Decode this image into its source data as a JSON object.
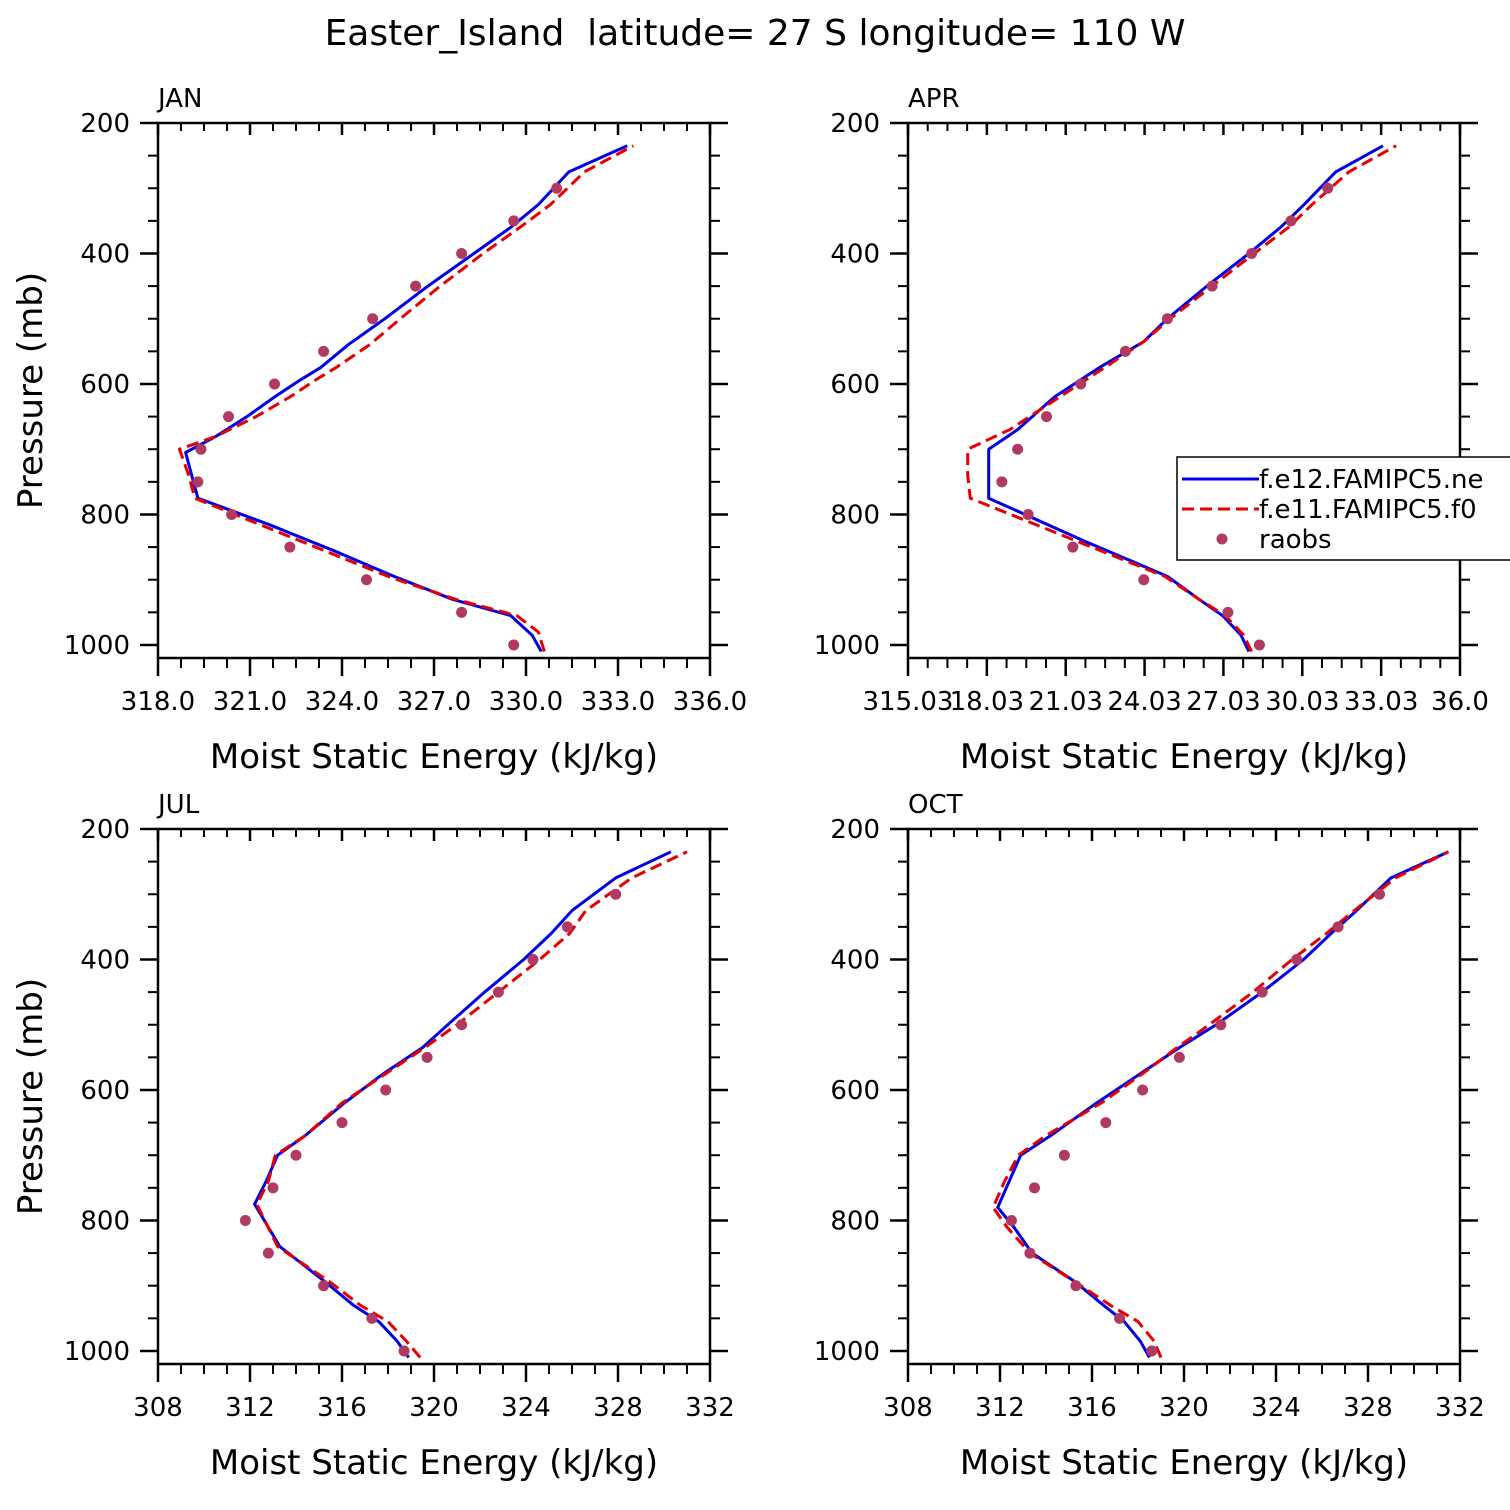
{
  "figure_title": "Easter_Island  latitude= 27 S longitude= 110 W",
  "legend": {
    "entries": [
      {
        "label": "f.e12.FAMIPC5.ne",
        "style": "solid",
        "color": "#0000e6"
      },
      {
        "label": "f.e11.FAMIPC5.f0",
        "style": "dashed",
        "color": "#e60000"
      },
      {
        "label": "raobs",
        "style": "marker",
        "color": "#b03a62"
      }
    ]
  },
  "colors": {
    "model_new": "#0000e6",
    "model_old": "#e60000",
    "raobs": "#b03a62"
  },
  "chart_data": [
    {
      "type": "line",
      "panel": "JAN",
      "title": "JAN",
      "xlabel": "Moist Static Energy (kJ/kg)",
      "ylabel": "Pressure (mb)",
      "xlim": [
        318,
        336
      ],
      "ylim": [
        200,
        1000
      ],
      "xticks": [
        318,
        321,
        324,
        327,
        330,
        333,
        336
      ],
      "xtick_labels": [
        "318.0",
        "321.0",
        "324.0",
        "327.0",
        "330.0",
        "333.0",
        "336.0"
      ],
      "yticks": [
        200,
        400,
        600,
        800,
        1000
      ],
      "ytick_labels": [
        "200",
        "400",
        "600",
        "800",
        "1000"
      ],
      "series": [
        {
          "name": "f.e12.FAMIPC5.ne",
          "pressure": [
            1010,
            985,
            955,
            930,
            895,
            855,
            815,
            775,
            740,
            705,
            680,
            650,
            620,
            595,
            575,
            540,
            500,
            450,
            400,
            360,
            325,
            275,
            235
          ],
          "values": [
            330.5,
            330.2,
            329.5,
            327.6,
            325.7,
            323.7,
            321.6,
            319.3,
            319.1,
            318.9,
            319.9,
            320.9,
            321.8,
            322.6,
            323.3,
            324.2,
            325.4,
            326.8,
            328.3,
            329.5,
            330.4,
            331.4,
            333.3
          ]
        },
        {
          "name": "f.e11.FAMIPC5.f0",
          "pressure": [
            1010,
            980,
            955,
            930,
            895,
            855,
            815,
            775,
            740,
            700,
            680,
            650,
            620,
            595,
            575,
            540,
            500,
            450,
            400,
            360,
            325,
            275,
            235
          ],
          "values": [
            330.6,
            330.4,
            329.7,
            327.7,
            325.5,
            323.4,
            321.3,
            319.2,
            319.0,
            318.7,
            319.9,
            321.2,
            322.3,
            323.1,
            323.8,
            324.9,
            325.9,
            327.2,
            328.6,
            329.8,
            330.8,
            331.9,
            333.5
          ]
        },
        {
          "name": "raobs",
          "pressure": [
            300,
            350,
            400,
            450,
            500,
            550,
            600,
            650,
            700,
            750,
            800,
            850,
            900,
            950,
            1000
          ],
          "values": [
            331.0,
            329.6,
            327.9,
            326.4,
            325.0,
            323.4,
            321.8,
            320.3,
            319.4,
            319.3,
            320.4,
            322.3,
            324.8,
            327.9,
            329.6
          ]
        }
      ]
    },
    {
      "type": "line",
      "panel": "APR",
      "title": "APR",
      "xlabel": "Moist Static Energy (kJ/kg)",
      "ylabel": "",
      "xlim": [
        315.03,
        336.03
      ],
      "ylim": [
        200,
        1000
      ],
      "xticks": [
        315.03,
        318.03,
        321.03,
        324.03,
        327.03,
        330.03,
        333.03,
        336.03
      ],
      "xtick_labels": [
        "315.03",
        "18.03",
        "21.03",
        "24.03",
        "27.03",
        "30.03",
        "33.03",
        "36.0"
      ],
      "yticks": [
        200,
        400,
        600,
        800,
        1000
      ],
      "ytick_labels": [
        "200",
        "400",
        "600",
        "800",
        "1000"
      ],
      "series": [
        {
          "name": "f.e12.FAMIPC5.ne",
          "pressure": [
            1010,
            985,
            955,
            930,
            895,
            840,
            775,
            740,
            700,
            670,
            620,
            575,
            535,
            500,
            450,
            400,
            360,
            325,
            275,
            235
          ],
          "values": [
            328.0,
            327.7,
            327.0,
            326.1,
            324.9,
            321.7,
            318.1,
            318.1,
            318.1,
            319.2,
            320.6,
            322.3,
            324.0,
            324.9,
            326.4,
            328.0,
            329.2,
            330.1,
            331.3,
            333.1
          ]
        },
        {
          "name": "f.e11.FAMIPC5.f0",
          "pressure": [
            1010,
            985,
            955,
            930,
            895,
            840,
            775,
            740,
            700,
            670,
            620,
            575,
            535,
            500,
            450,
            400,
            360,
            325,
            275,
            235
          ],
          "values": [
            328.1,
            327.8,
            327.1,
            326.1,
            324.8,
            321.4,
            317.4,
            317.3,
            317.3,
            318.9,
            320.8,
            322.5,
            324.0,
            325.0,
            326.6,
            328.2,
            329.5,
            330.4,
            331.8,
            333.6
          ]
        },
        {
          "name": "raobs",
          "pressure": [
            300,
            350,
            400,
            450,
            500,
            550,
            600,
            650,
            700,
            750,
            800,
            850,
            900,
            950,
            1000
          ],
          "values": [
            331.0,
            329.6,
            328.1,
            326.6,
            324.9,
            323.3,
            321.6,
            320.3,
            319.2,
            318.6,
            319.6,
            321.3,
            324.0,
            327.2,
            328.4
          ]
        }
      ]
    },
    {
      "type": "line",
      "panel": "JUL",
      "title": "JUL",
      "xlabel": "Moist Static Energy (kJ/kg)",
      "ylabel": "Pressure (mb)",
      "xlim": [
        308,
        332
      ],
      "ylim": [
        200,
        1000
      ],
      "xticks": [
        308,
        312,
        316,
        320,
        324,
        328,
        332
      ],
      "xtick_labels": [
        "308",
        "312",
        "316",
        "320",
        "324",
        "328",
        "332"
      ],
      "yticks": [
        200,
        400,
        600,
        800,
        1000
      ],
      "ytick_labels": [
        "200",
        "400",
        "600",
        "800",
        "1000"
      ],
      "series": [
        {
          "name": "f.e12.FAMIPC5.ne",
          "pressure": [
            1010,
            985,
            955,
            930,
            895,
            840,
            775,
            740,
            700,
            670,
            620,
            575,
            535,
            500,
            450,
            400,
            360,
            325,
            275,
            235
          ],
          "values": [
            318.9,
            318.4,
            317.6,
            316.5,
            315.3,
            313.3,
            312.2,
            312.7,
            313.2,
            314.4,
            316.1,
            317.8,
            319.5,
            320.6,
            322.2,
            323.9,
            325.1,
            326.0,
            327.9,
            330.3
          ]
        },
        {
          "name": "f.e11.FAMIPC5.f0",
          "pressure": [
            1010,
            985,
            955,
            930,
            895,
            840,
            775,
            740,
            700,
            670,
            620,
            575,
            535,
            500,
            450,
            400,
            360,
            325,
            275,
            235
          ],
          "values": [
            319.4,
            318.8,
            318.0,
            316.8,
            315.5,
            313.2,
            312.3,
            312.8,
            313.1,
            314.4,
            316.0,
            317.9,
            319.6,
            321.0,
            322.8,
            324.6,
            325.9,
            326.6,
            328.6,
            331.0
          ]
        },
        {
          "name": "raobs",
          "pressure": [
            300,
            350,
            400,
            450,
            500,
            550,
            600,
            650,
            700,
            750,
            800,
            850,
            900,
            950,
            1000
          ],
          "values": [
            327.9,
            325.8,
            324.3,
            322.8,
            321.2,
            319.7,
            317.9,
            316.0,
            314.0,
            313.0,
            311.8,
            312.8,
            315.2,
            317.3,
            318.7
          ]
        }
      ]
    },
    {
      "type": "line",
      "panel": "OCT",
      "title": "OCT",
      "xlabel": "Moist Static Energy (kJ/kg)",
      "ylabel": "",
      "xlim": [
        308,
        332
      ],
      "ylim": [
        200,
        1000
      ],
      "xticks": [
        308,
        312,
        316,
        320,
        324,
        328,
        332
      ],
      "xtick_labels": [
        "308",
        "312",
        "316",
        "320",
        "324",
        "328",
        "332"
      ],
      "yticks": [
        200,
        400,
        600,
        800,
        1000
      ],
      "ytick_labels": [
        "200",
        "400",
        "600",
        "800",
        "1000"
      ],
      "series": [
        {
          "name": "f.e12.FAMIPC5.ne",
          "pressure": [
            1010,
            985,
            955,
            930,
            895,
            850,
            810,
            780,
            740,
            700,
            670,
            620,
            575,
            535,
            500,
            450,
            400,
            360,
            325,
            275,
            235
          ],
          "values": [
            318.5,
            318.1,
            317.4,
            316.5,
            315.3,
            313.4,
            312.6,
            311.9,
            312.4,
            312.9,
            314.2,
            316.2,
            318.1,
            319.8,
            321.4,
            323.4,
            325.2,
            326.4,
            327.5,
            329.0,
            331.5
          ]
        },
        {
          "name": "f.e11.FAMIPC5.f0",
          "pressure": [
            1010,
            985,
            955,
            930,
            895,
            850,
            810,
            780,
            740,
            700,
            670,
            620,
            575,
            535,
            500,
            450,
            400,
            360,
            325,
            275,
            235
          ],
          "values": [
            319.0,
            318.7,
            318.0,
            316.8,
            315.3,
            313.3,
            312.3,
            311.7,
            312.2,
            312.8,
            314.0,
            316.4,
            318.2,
            319.7,
            321.1,
            323.0,
            324.7,
            326.2,
            327.4,
            329.2,
            331.5
          ]
        },
        {
          "name": "raobs",
          "pressure": [
            300,
            350,
            400,
            450,
            500,
            550,
            600,
            650,
            700,
            750,
            800,
            850,
            900,
            950,
            1000
          ],
          "values": [
            328.5,
            326.7,
            324.9,
            323.4,
            321.6,
            319.8,
            318.2,
            316.6,
            314.8,
            313.5,
            312.5,
            313.3,
            315.3,
            317.2,
            318.6
          ]
        }
      ]
    }
  ]
}
